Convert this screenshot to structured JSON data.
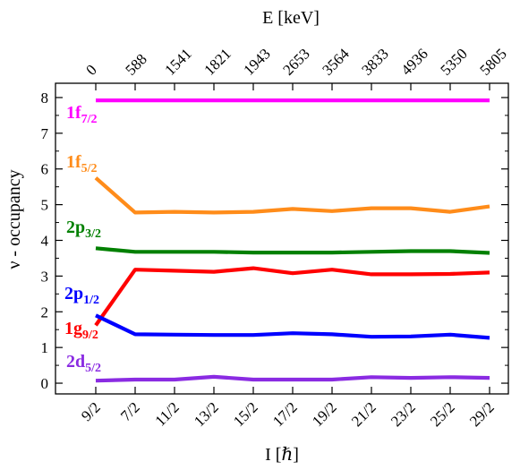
{
  "chart_data": {
    "type": "line",
    "xlabel": "I [ℏ]",
    "ylabel": "ν - occupancy",
    "top_axis_label": "E [keV]",
    "categories": [
      "9/2",
      "7/2",
      "11/2",
      "13/2",
      "15/2",
      "17/2",
      "19/2",
      "21/2",
      "23/2",
      "25/2",
      "29/2"
    ],
    "top_categories": [
      "0",
      "588",
      "1541",
      "1821",
      "1943",
      "2653",
      "3564",
      "3833",
      "4936",
      "5350",
      "5805"
    ],
    "ylim": [
      -0.3,
      8.4
    ],
    "yticks": [
      "0",
      "1",
      "2",
      "3",
      "4",
      "5",
      "6",
      "7",
      "8"
    ],
    "grid": false,
    "series": [
      {
        "name": "1f",
        "sub": "7/2",
        "color": "#ff00ff",
        "values": [
          7.92,
          7.92,
          7.92,
          7.92,
          7.92,
          7.92,
          7.92,
          7.92,
          7.92,
          7.92,
          7.92
        ]
      },
      {
        "name": "1f",
        "sub": "5/2",
        "color": "#ff8c1a",
        "values": [
          5.75,
          4.78,
          4.8,
          4.78,
          4.8,
          4.88,
          4.82,
          4.9,
          4.9,
          4.8,
          4.95
        ]
      },
      {
        "name": "2p",
        "sub": "3/2",
        "color": "#008000",
        "values": [
          3.78,
          3.68,
          3.68,
          3.68,
          3.66,
          3.66,
          3.66,
          3.68,
          3.7,
          3.7,
          3.65
        ]
      },
      {
        "name": "1g",
        "sub": "9/2",
        "color": "#ff0000",
        "values": [
          1.62,
          3.18,
          3.15,
          3.12,
          3.22,
          3.08,
          3.18,
          3.05,
          3.05,
          3.06,
          3.1
        ]
      },
      {
        "name": "2p",
        "sub": "1/2",
        "color": "#0000ff",
        "values": [
          1.9,
          1.37,
          1.36,
          1.35,
          1.35,
          1.4,
          1.37,
          1.3,
          1.31,
          1.36,
          1.27
        ]
      },
      {
        "name": "2d",
        "sub": "5/2",
        "color": "#8a2be2",
        "values": [
          0.07,
          0.1,
          0.1,
          0.18,
          0.1,
          0.1,
          0.1,
          0.17,
          0.15,
          0.17,
          0.15
        ]
      }
    ]
  }
}
